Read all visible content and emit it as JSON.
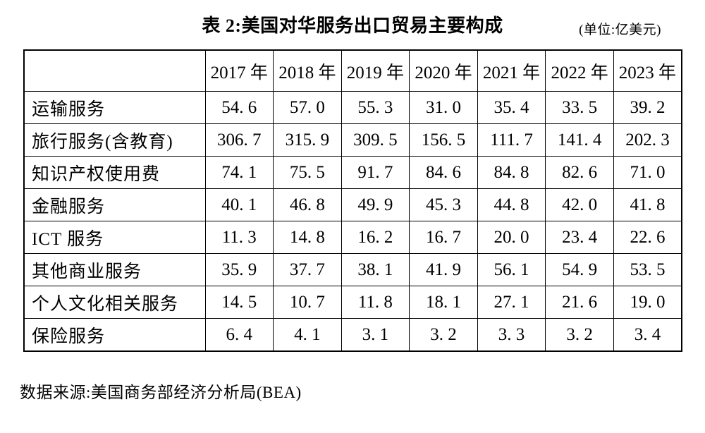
{
  "title": "表 2:美国对华服务出口贸易主要构成",
  "unit_note": "(单位:亿美元)",
  "table": {
    "corner_label": "",
    "columns": [
      "2017 年",
      "2018 年",
      "2019 年",
      "2020 年",
      "2021 年",
      "2022 年",
      "2023 年"
    ],
    "rows": [
      {
        "label": "运输服务",
        "values": [
          "54.6",
          "57.0",
          "55.3",
          "31.0",
          "35.4",
          "33.5",
          "39.2"
        ]
      },
      {
        "label": "旅行服务(含教育)",
        "values": [
          "306.7",
          "315.9",
          "309.5",
          "156.5",
          "111.7",
          "141.4",
          "202.3"
        ]
      },
      {
        "label": "知识产权使用费",
        "values": [
          "74.1",
          "75.5",
          "91.7",
          "84.6",
          "84.8",
          "82.6",
          "71.0"
        ]
      },
      {
        "label": "金融服务",
        "values": [
          "40.1",
          "46.8",
          "49.9",
          "45.3",
          "44.8",
          "42.0",
          "41.8"
        ]
      },
      {
        "label": "ICT 服务",
        "values": [
          "11.3",
          "14.8",
          "16.2",
          "16.7",
          "20.0",
          "23.4",
          "22.6"
        ]
      },
      {
        "label": "其他商业服务",
        "values": [
          "35.9",
          "37.7",
          "38.1",
          "41.9",
          "56.1",
          "54.9",
          "53.5"
        ]
      },
      {
        "label": "个人文化相关服务",
        "values": [
          "14.5",
          "10.7",
          "11.8",
          "18.1",
          "27.1",
          "21.6",
          "19.0"
        ]
      },
      {
        "label": "保险服务",
        "values": [
          "6.4",
          "4.1",
          "3.1",
          "3.2",
          "3.3",
          "3.2",
          "3.4"
        ]
      }
    ]
  },
  "footer": {
    "source": "数据来源:美国商务部经济分析局(BEA)"
  }
}
